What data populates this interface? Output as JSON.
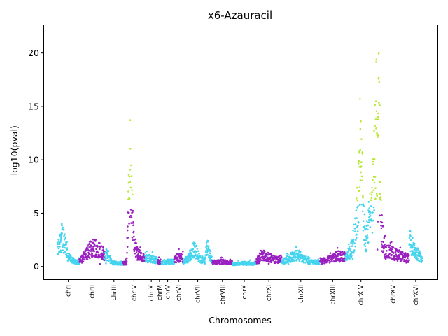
{
  "chart_data": {
    "type": "scatter",
    "title": "x6-Azauracil",
    "xlabel": "Chromosomes",
    "ylabel": "-log10(pval)",
    "ylim": [
      -1.2,
      22.6
    ],
    "yticks": [
      0,
      5,
      10,
      15,
      20
    ],
    "grid": false,
    "legend": "none",
    "colors": {
      "odd": "#44d4ee",
      "even": "#9a20c0",
      "significant": "#b8e83a"
    },
    "significance_threshold": 6.2,
    "chromosomes": [
      {
        "name": "chrI",
        "start": 0.0,
        "end": 0.06,
        "profile": [
          [
            0.0,
            2.0
          ],
          [
            0.01,
            3.8
          ],
          [
            0.02,
            3.5
          ],
          [
            0.03,
            1.2
          ],
          [
            0.045,
            0.7
          ],
          [
            0.06,
            0.5
          ]
        ]
      },
      {
        "name": "chrII",
        "start": 0.06,
        "end": 0.13,
        "profile": [
          [
            0.06,
            0.6
          ],
          [
            0.075,
            1.4
          ],
          [
            0.09,
            2.2
          ],
          [
            0.105,
            2.6
          ],
          [
            0.12,
            2.0
          ],
          [
            0.13,
            1.5
          ]
        ]
      },
      {
        "name": "chrIII",
        "start": 0.13,
        "end": 0.18,
        "profile": [
          [
            0.13,
            1.6
          ],
          [
            0.14,
            1.3
          ],
          [
            0.15,
            0.5
          ],
          [
            0.165,
            0.4
          ],
          [
            0.18,
            0.4
          ]
        ]
      },
      {
        "name": "chrIV",
        "start": 0.18,
        "end": 0.24,
        "profile": [
          [
            0.18,
            0.4
          ],
          [
            0.19,
            0.5
          ],
          [
            0.195,
            7.0
          ],
          [
            0.2,
            13.0
          ],
          [
            0.205,
            7.5
          ],
          [
            0.21,
            3.0
          ],
          [
            0.22,
            1.6
          ],
          [
            0.24,
            1.0
          ]
        ]
      },
      {
        "name": "chrIX",
        "start": 0.24,
        "end": 0.275,
        "profile": [
          [
            0.24,
            1.2
          ],
          [
            0.255,
            1.0
          ],
          [
            0.275,
            0.8
          ]
        ]
      },
      {
        "name": "chrM",
        "start": 0.275,
        "end": 0.285,
        "profile": [
          [
            0.275,
            0.6
          ],
          [
            0.285,
            0.6
          ]
        ]
      },
      {
        "name": "chrV",
        "start": 0.285,
        "end": 0.32,
        "profile": [
          [
            0.285,
            0.5
          ],
          [
            0.3,
            0.6
          ],
          [
            0.32,
            0.6
          ]
        ]
      },
      {
        "name": "chrVI",
        "start": 0.32,
        "end": 0.345,
        "profile": [
          [
            0.32,
            0.8
          ],
          [
            0.33,
            1.2
          ],
          [
            0.345,
            1.0
          ]
        ]
      },
      {
        "name": "chrVII",
        "start": 0.345,
        "end": 0.425,
        "profile": [
          [
            0.345,
            0.7
          ],
          [
            0.36,
            0.9
          ],
          [
            0.375,
            2.4
          ],
          [
            0.39,
            1.0
          ],
          [
            0.405,
            0.6
          ],
          [
            0.41,
            2.5
          ],
          [
            0.425,
            0.8
          ]
        ]
      },
      {
        "name": "chrVIII",
        "start": 0.425,
        "end": 0.48,
        "profile": [
          [
            0.425,
            0.5
          ],
          [
            0.45,
            0.6
          ],
          [
            0.48,
            0.5
          ]
        ]
      },
      {
        "name": "chrX",
        "start": 0.48,
        "end": 0.545,
        "profile": [
          [
            0.48,
            0.3
          ],
          [
            0.51,
            0.4
          ],
          [
            0.545,
            0.3
          ]
        ]
      },
      {
        "name": "chrXI",
        "start": 0.545,
        "end": 0.615,
        "profile": [
          [
            0.545,
            0.6
          ],
          [
            0.56,
            1.5
          ],
          [
            0.58,
            1.2
          ],
          [
            0.6,
            0.8
          ],
          [
            0.615,
            1.0
          ]
        ]
      },
      {
        "name": "chrXII",
        "start": 0.615,
        "end": 0.72,
        "profile": [
          [
            0.615,
            0.5
          ],
          [
            0.64,
            1.2
          ],
          [
            0.66,
            1.5
          ],
          [
            0.69,
            0.6
          ],
          [
            0.72,
            0.5
          ]
        ]
      },
      {
        "name": "chrXIII",
        "start": 0.72,
        "end": 0.79,
        "profile": [
          [
            0.72,
            0.6
          ],
          [
            0.75,
            1.0
          ],
          [
            0.77,
            1.4
          ],
          [
            0.79,
            1.2
          ]
        ]
      },
      {
        "name": "chrXIV",
        "start": 0.79,
        "end": 0.875,
        "profile": [
          [
            0.79,
            1.0
          ],
          [
            0.805,
            2.0
          ],
          [
            0.82,
            5.0
          ],
          [
            0.83,
            14.5
          ],
          [
            0.845,
            3.0
          ],
          [
            0.855,
            6.0
          ],
          [
            0.865,
            9.0
          ],
          [
            0.875,
            18.5
          ]
        ]
      },
      {
        "name": "chrXV",
        "start": 0.875,
        "end": 0.965,
        "profile": [
          [
            0.875,
            18.5
          ],
          [
            0.885,
            16.0
          ],
          [
            0.89,
            4.0
          ],
          [
            0.9,
            2.0
          ],
          [
            0.93,
            1.5
          ],
          [
            0.965,
            1.0
          ]
        ]
      },
      {
        "name": "chrXVI",
        "start": 0.965,
        "end": 1.0,
        "profile": [
          [
            0.965,
            3.5
          ],
          [
            0.975,
            2.5
          ],
          [
            0.99,
            1.5
          ],
          [
            1.0,
            1.0
          ]
        ]
      }
    ]
  }
}
